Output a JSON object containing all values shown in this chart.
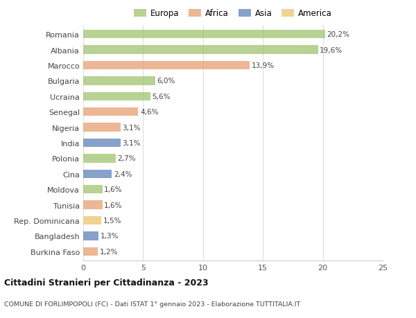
{
  "countries": [
    "Romania",
    "Albania",
    "Marocco",
    "Bulgaria",
    "Ucraina",
    "Senegal",
    "Nigeria",
    "India",
    "Polonia",
    "Cina",
    "Moldova",
    "Tunisia",
    "Rep. Dominicana",
    "Bangladesh",
    "Burkina Faso"
  ],
  "values": [
    20.2,
    19.6,
    13.9,
    6.0,
    5.6,
    4.6,
    3.1,
    3.1,
    2.7,
    2.4,
    1.6,
    1.6,
    1.5,
    1.3,
    1.2
  ],
  "labels": [
    "20,2%",
    "19,6%",
    "13,9%",
    "6,0%",
    "5,6%",
    "4,6%",
    "3,1%",
    "3,1%",
    "2,7%",
    "2,4%",
    "1,6%",
    "1,6%",
    "1,5%",
    "1,3%",
    "1,2%"
  ],
  "colors": [
    "#a8c87a",
    "#a8c87a",
    "#e8a87c",
    "#a8c87a",
    "#a8c87a",
    "#e8a87c",
    "#e8a87c",
    "#6b8cbf",
    "#a8c87a",
    "#6b8cbf",
    "#a8c87a",
    "#e8a87c",
    "#f0c87a",
    "#6b8cbf",
    "#e8a87c"
  ],
  "legend": [
    {
      "label": "Europa",
      "color": "#a8c87a"
    },
    {
      "label": "Africa",
      "color": "#e8a87c"
    },
    {
      "label": "Asia",
      "color": "#6b8cbf"
    },
    {
      "label": "America",
      "color": "#f0c87a"
    }
  ],
  "title": "Cittadini Stranieri per Cittadinanza - 2023",
  "subtitle": "COMUNE DI FORLIMPOPOLI (FC) - Dati ISTAT 1° gennaio 2023 - Elaborazione TUTTITALIA.IT",
  "xlim": [
    0,
    25
  ],
  "xticks": [
    0,
    5,
    10,
    15,
    20,
    25
  ],
  "background_color": "#ffffff",
  "bar_height": 0.55
}
